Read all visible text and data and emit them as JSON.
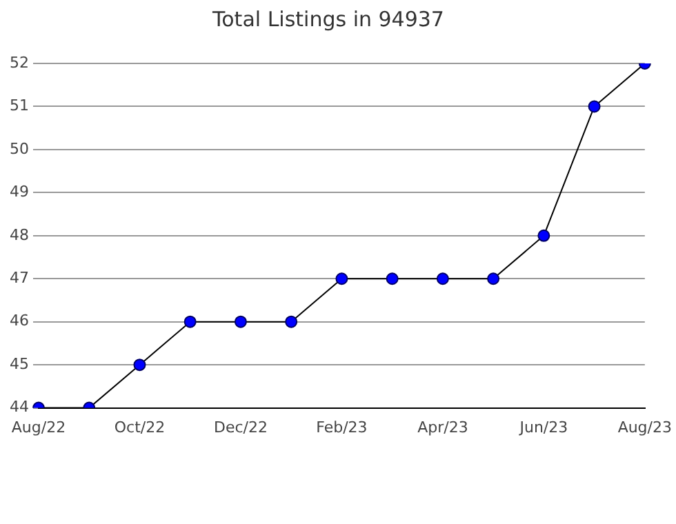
{
  "chart_data": {
    "type": "line",
    "title": "Total Listings in 94937",
    "categories": [
      "Aug/22",
      null,
      "Oct/22",
      null,
      "Dec/22",
      null,
      "Feb/23",
      null,
      "Apr/23",
      null,
      "Jun/23",
      null,
      "Aug/23"
    ],
    "series": [
      {
        "color": "#0000ff",
        "values": [
          44,
          44,
          45,
          46,
          46,
          46,
          47,
          47,
          47,
          47,
          48,
          51,
          52
        ]
      }
    ],
    "ylim": [
      44,
      52
    ],
    "yticks": [
      44,
      45,
      46,
      47,
      48,
      49,
      50,
      51,
      52
    ],
    "grid": "y",
    "legend": false,
    "marker": "circle",
    "line_style": "solid"
  }
}
